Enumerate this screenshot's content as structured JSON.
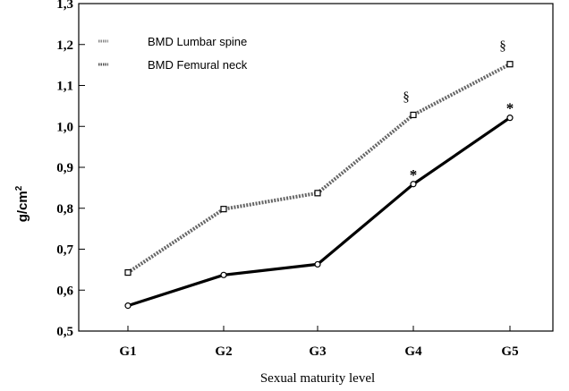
{
  "chart_data": {
    "type": "line",
    "title": "",
    "xlabel": "Sexual maturity level",
    "ylabel": "g/cm",
    "ylabel_superscript": "2",
    "categories": [
      "G1",
      "G2",
      "G3",
      "G4",
      "G5"
    ],
    "ylim": [
      0.5,
      1.3
    ],
    "yticks": [
      "0,5",
      "0,6",
      "0,7",
      "0,8",
      "0,9",
      "1,0",
      "1,1",
      "1,2",
      "1,3"
    ],
    "ytick_values": [
      0.5,
      0.6,
      0.7,
      0.8,
      0.9,
      1.0,
      1.1,
      1.2,
      1.3
    ],
    "grid": false,
    "legend_position": "top-left",
    "series": [
      {
        "name": "BMD Lumbar spine",
        "values": [
          0.643,
          0.798,
          0.837,
          1.028,
          1.152
        ],
        "marker": "square",
        "line_style": "dotted-thick",
        "color": "#555555"
      },
      {
        "name": "BMD Femural neck",
        "values": [
          0.562,
          0.637,
          0.663,
          0.859,
          1.021
        ],
        "marker": "circle",
        "line_style": "solid-thick",
        "color": "#000000"
      }
    ],
    "annotations": [
      {
        "series": 0,
        "category": "G4",
        "text": "§"
      },
      {
        "series": 0,
        "category": "G5",
        "text": "§"
      },
      {
        "series": 1,
        "category": "G4",
        "text": "*"
      },
      {
        "series": 1,
        "category": "G5",
        "text": "*"
      }
    ]
  }
}
